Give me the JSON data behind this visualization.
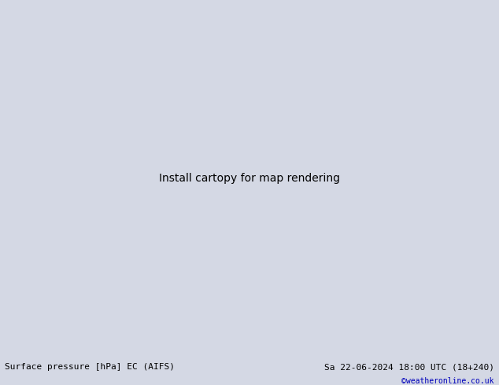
{
  "title_left": "Surface pressure [hPa] EC (AIFS)",
  "title_right": "Sa 22-06-2024 18:00 UTC (18+240)",
  "copyright": "©weatheronline.co.uk",
  "bg_color": "#d4d8e4",
  "land_color": "#b8d4a0",
  "ocean_color": "#d4d8e4",
  "border_color": "#888888",
  "contour_black": "#000000",
  "contour_blue": "#0000cc",
  "contour_red": "#cc0000",
  "text_color_left": "#000000",
  "text_color_right": "#000000",
  "text_color_copy": "#0000bb",
  "lon_min": -110,
  "lon_max": 20,
  "lat_min": -65,
  "lat_max": 20,
  "fig_width": 6.34,
  "fig_height": 4.9,
  "dpi": 100
}
